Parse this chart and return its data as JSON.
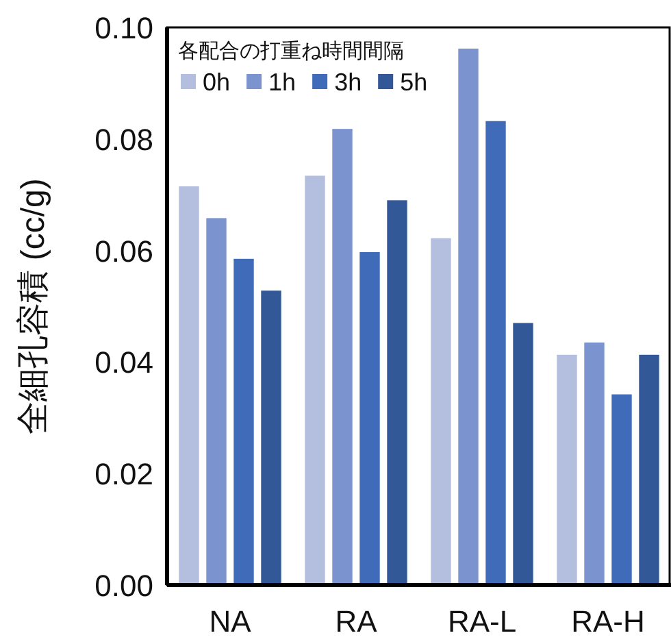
{
  "chart_data": {
    "type": "bar",
    "ylabel": "全細孔容積 (cc/g)",
    "legend_title": "各配合の打重ね時間間隔",
    "legend": "top left",
    "grid": false,
    "categories": [
      "NA",
      "RA",
      "RA-L",
      "RA-H"
    ],
    "ylim": [
      0,
      0.1
    ],
    "yticks": [
      {
        "value": 0,
        "label": "0.00"
      },
      {
        "value": 0.02,
        "label": "0.02"
      },
      {
        "value": 0.04,
        "label": "0.04"
      },
      {
        "value": 0.06,
        "label": "0.06"
      },
      {
        "value": 0.08,
        "label": "0.08"
      },
      {
        "value": 0.1,
        "label": "0.10"
      }
    ],
    "series": [
      {
        "name": "0h",
        "color": "#b4bedf",
        "values": [
          0.0716,
          0.0735,
          0.0623,
          0.0414
        ]
      },
      {
        "name": "1h",
        "color": "#7b93cf",
        "values": [
          0.0659,
          0.0819,
          0.0963,
          0.0436
        ]
      },
      {
        "name": "3h",
        "color": "#3f6bb8",
        "values": [
          0.0586,
          0.0598,
          0.0833,
          0.0343
        ]
      },
      {
        "name": "5h",
        "color": "#325897",
        "values": [
          0.0529,
          0.0691,
          0.0471,
          0.0414
        ]
      }
    ]
  }
}
